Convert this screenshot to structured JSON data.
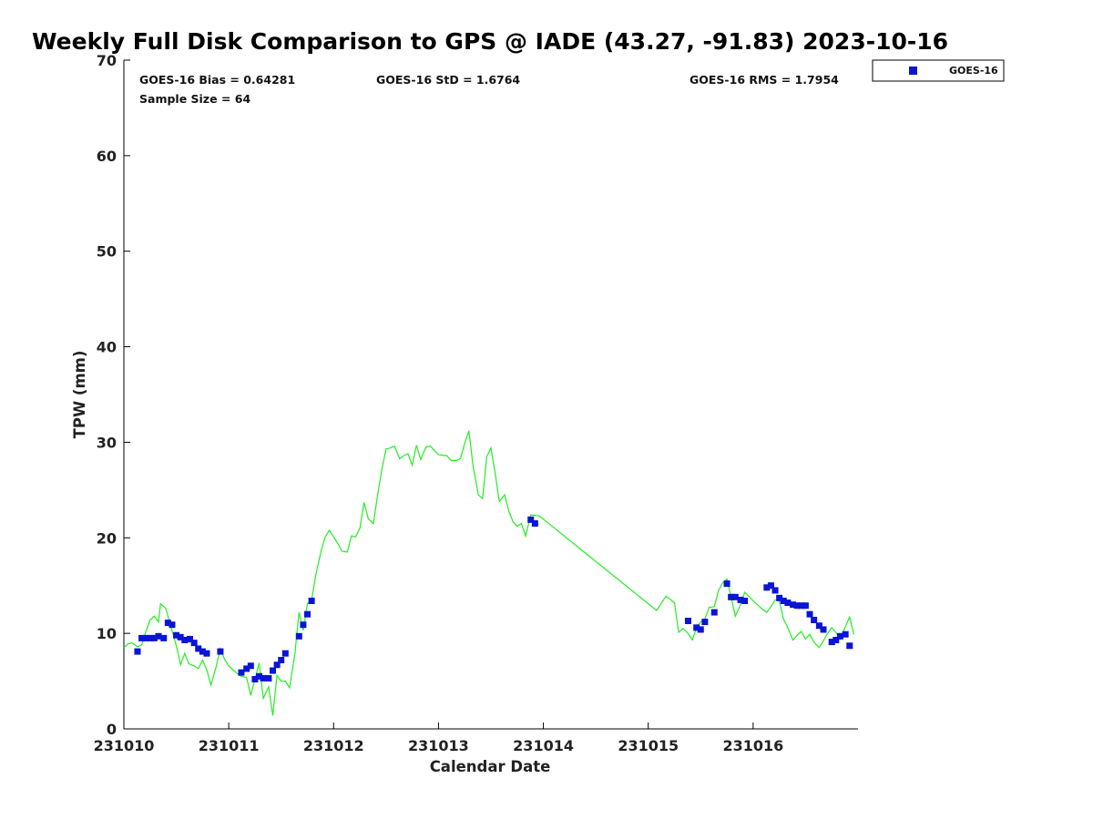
{
  "chart_data": {
    "type": "scatter",
    "title": "Weekly Full Disk Comparison to GPS @ IADE (43.27, -91.83) 2023-10-16",
    "xlabel": "Calendar Date",
    "ylabel": "TPW (mm)",
    "xlim": [
      231010,
      231017
    ],
    "ylim": [
      0,
      70
    ],
    "x_tick_labels": [
      "231010",
      "231011",
      "231012",
      "231013",
      "231014",
      "231015",
      "231016"
    ],
    "y_ticks": [
      0,
      10,
      20,
      30,
      40,
      50,
      60,
      70
    ],
    "grid": false,
    "legend_position": "top-right",
    "stats": {
      "bias": "GOES-16 Bias = 0.64281",
      "std": "GOES-16 StD = 1.6764",
      "rms": "GOES-16 RMS = 1.7954",
      "sample": "Sample Size = 64"
    },
    "series": [
      {
        "name": "GOES-16",
        "kind": "scatter",
        "marker": "square",
        "color": "#0a14d6",
        "points": [
          [
            231010.13,
            8.1
          ],
          [
            231010.17,
            9.5
          ],
          [
            231010.21,
            9.5
          ],
          [
            231010.25,
            9.5
          ],
          [
            231010.29,
            9.5
          ],
          [
            231010.33,
            9.7
          ],
          [
            231010.38,
            9.5
          ],
          [
            231010.42,
            11.1
          ],
          [
            231010.46,
            10.9
          ],
          [
            231010.5,
            9.8
          ],
          [
            231010.54,
            9.6
          ],
          [
            231010.58,
            9.3
          ],
          [
            231010.63,
            9.4
          ],
          [
            231010.67,
            9.0
          ],
          [
            231010.71,
            8.4
          ],
          [
            231010.75,
            8.1
          ],
          [
            231010.79,
            7.9
          ],
          [
            231010.92,
            8.1
          ],
          [
            231011.12,
            5.9
          ],
          [
            231011.17,
            6.3
          ],
          [
            231011.21,
            6.6
          ],
          [
            231011.25,
            5.2
          ],
          [
            231011.29,
            5.5
          ],
          [
            231011.33,
            5.3
          ],
          [
            231011.38,
            5.3
          ],
          [
            231011.42,
            6.1
          ],
          [
            231011.46,
            6.7
          ],
          [
            231011.5,
            7.2
          ],
          [
            231011.54,
            7.9
          ],
          [
            231011.67,
            9.7
          ],
          [
            231011.71,
            10.9
          ],
          [
            231011.75,
            12.0
          ],
          [
            231011.79,
            13.4
          ],
          [
            231013.88,
            21.9
          ],
          [
            231013.92,
            21.5
          ],
          [
            231015.38,
            11.3
          ],
          [
            231015.46,
            10.6
          ],
          [
            231015.5,
            10.4
          ],
          [
            231015.54,
            11.2
          ],
          [
            231015.63,
            12.2
          ],
          [
            231015.75,
            15.2
          ],
          [
            231015.79,
            13.8
          ],
          [
            231015.83,
            13.8
          ],
          [
            231015.88,
            13.5
          ],
          [
            231015.92,
            13.4
          ],
          [
            231016.13,
            14.8
          ],
          [
            231016.17,
            15.0
          ],
          [
            231016.21,
            14.5
          ],
          [
            231016.25,
            13.7
          ],
          [
            231016.29,
            13.4
          ],
          [
            231016.33,
            13.2
          ],
          [
            231016.38,
            13.0
          ],
          [
            231016.42,
            12.9
          ],
          [
            231016.46,
            12.9
          ],
          [
            231016.5,
            12.9
          ],
          [
            231016.54,
            12.0
          ],
          [
            231016.58,
            11.4
          ],
          [
            231016.63,
            10.8
          ],
          [
            231016.67,
            10.4
          ],
          [
            231016.75,
            9.1
          ],
          [
            231016.79,
            9.3
          ],
          [
            231016.83,
            9.7
          ],
          [
            231016.88,
            9.9
          ],
          [
            231016.92,
            8.7
          ]
        ]
      },
      {
        "name": "",
        "kind": "line",
        "color": "#22ee22",
        "points": [
          [
            231010.0,
            8.5
          ],
          [
            231010.04,
            8.9
          ],
          [
            231010.08,
            9.0
          ],
          [
            231010.13,
            8.6
          ],
          [
            231010.17,
            8.8
          ],
          [
            231010.21,
            10.2
          ],
          [
            231010.25,
            11.4
          ],
          [
            231010.29,
            11.8
          ],
          [
            231010.33,
            11.2
          ],
          [
            231010.35,
            13.1
          ],
          [
            231010.4,
            12.6
          ],
          [
            231010.44,
            11.0
          ],
          [
            231010.48,
            9.5
          ],
          [
            231010.52,
            7.8
          ],
          [
            231010.54,
            6.7
          ],
          [
            231010.58,
            7.9
          ],
          [
            231010.62,
            6.8
          ],
          [
            231010.67,
            6.6
          ],
          [
            231010.71,
            6.3
          ],
          [
            231010.75,
            7.2
          ],
          [
            231010.79,
            6.2
          ],
          [
            231010.83,
            4.6
          ],
          [
            231010.88,
            6.5
          ],
          [
            231010.92,
            8.4
          ],
          [
            231010.96,
            7.3
          ],
          [
            231011.0,
            6.6
          ],
          [
            231011.04,
            6.2
          ],
          [
            231011.08,
            5.8
          ],
          [
            231011.12,
            5.5
          ],
          [
            231011.17,
            5.4
          ],
          [
            231011.21,
            3.5
          ],
          [
            231011.25,
            5.2
          ],
          [
            231011.29,
            6.9
          ],
          [
            231011.33,
            3.2
          ],
          [
            231011.38,
            4.4
          ],
          [
            231011.42,
            1.4
          ],
          [
            231011.46,
            5.6
          ],
          [
            231011.5,
            5.0
          ],
          [
            231011.54,
            5.0
          ],
          [
            231011.58,
            4.3
          ],
          [
            231011.63,
            7.8
          ],
          [
            231011.67,
            12.2
          ],
          [
            231011.71,
            10.3
          ],
          [
            231011.75,
            13.1
          ],
          [
            231011.79,
            13.5
          ],
          [
            231011.83,
            16.1
          ],
          [
            231011.88,
            18.6
          ],
          [
            231011.92,
            20.1
          ],
          [
            231011.96,
            20.8
          ],
          [
            231012.0,
            20.1
          ],
          [
            231012.04,
            19.4
          ],
          [
            231012.08,
            18.6
          ],
          [
            231012.13,
            18.5
          ],
          [
            231012.17,
            20.2
          ],
          [
            231012.21,
            20.1
          ],
          [
            231012.25,
            21.0
          ],
          [
            231012.29,
            23.7
          ],
          [
            231012.33,
            22.0
          ],
          [
            231012.38,
            21.5
          ],
          [
            231012.42,
            24.5
          ],
          [
            231012.46,
            27.2
          ],
          [
            231012.5,
            29.3
          ],
          [
            231012.54,
            29.4
          ],
          [
            231012.58,
            29.6
          ],
          [
            231012.63,
            28.3
          ],
          [
            231012.67,
            28.6
          ],
          [
            231012.71,
            28.8
          ],
          [
            231012.75,
            27.6
          ],
          [
            231012.79,
            29.7
          ],
          [
            231012.83,
            28.2
          ],
          [
            231012.88,
            29.5
          ],
          [
            231012.92,
            29.6
          ],
          [
            231013.0,
            28.7
          ],
          [
            231013.08,
            28.6
          ],
          [
            231013.12,
            28.1
          ],
          [
            231013.17,
            28.1
          ],
          [
            231013.21,
            28.3
          ],
          [
            231013.25,
            29.9
          ],
          [
            231013.29,
            31.2
          ],
          [
            231013.33,
            27.5
          ],
          [
            231013.38,
            24.5
          ],
          [
            231013.42,
            24.1
          ],
          [
            231013.46,
            28.5
          ],
          [
            231013.5,
            29.4
          ],
          [
            231013.54,
            26.8
          ],
          [
            231013.58,
            23.8
          ],
          [
            231013.63,
            24.5
          ],
          [
            231013.67,
            22.8
          ],
          [
            231013.71,
            21.7
          ],
          [
            231013.75,
            21.2
          ],
          [
            231013.79,
            21.5
          ],
          [
            231013.83,
            20.2
          ],
          [
            231013.88,
            22.4
          ],
          [
            231013.96,
            22.3
          ],
          [
            231015.08,
            12.4
          ],
          [
            231015.17,
            13.9
          ],
          [
            231015.25,
            13.2
          ],
          [
            231015.29,
            10.1
          ],
          [
            231015.33,
            10.5
          ],
          [
            231015.38,
            10.0
          ],
          [
            231015.42,
            9.3
          ],
          [
            231015.46,
            10.6
          ],
          [
            231015.5,
            11.2
          ],
          [
            231015.54,
            11.5
          ],
          [
            231015.58,
            12.7
          ],
          [
            231015.63,
            12.8
          ],
          [
            231015.67,
            14.5
          ],
          [
            231015.71,
            15.3
          ],
          [
            231015.75,
            15.7
          ],
          [
            231015.79,
            13.8
          ],
          [
            231015.83,
            11.8
          ],
          [
            231015.88,
            13.0
          ],
          [
            231015.92,
            14.3
          ],
          [
            231016.0,
            13.4
          ],
          [
            231016.08,
            12.6
          ],
          [
            231016.13,
            12.2
          ],
          [
            231016.17,
            12.8
          ],
          [
            231016.21,
            13.5
          ],
          [
            231016.25,
            13.4
          ],
          [
            231016.29,
            11.5
          ],
          [
            231016.33,
            10.6
          ],
          [
            231016.38,
            9.3
          ],
          [
            231016.42,
            9.8
          ],
          [
            231016.46,
            10.2
          ],
          [
            231016.5,
            9.4
          ],
          [
            231016.54,
            9.9
          ],
          [
            231016.58,
            9.1
          ],
          [
            231016.63,
            8.5
          ],
          [
            231016.67,
            9.2
          ],
          [
            231016.71,
            10.0
          ],
          [
            231016.75,
            10.6
          ],
          [
            231016.79,
            10.1
          ],
          [
            231016.83,
            9.4
          ],
          [
            231016.88,
            10.7
          ],
          [
            231016.92,
            11.7
          ],
          [
            231016.96,
            9.9
          ]
        ]
      }
    ]
  }
}
